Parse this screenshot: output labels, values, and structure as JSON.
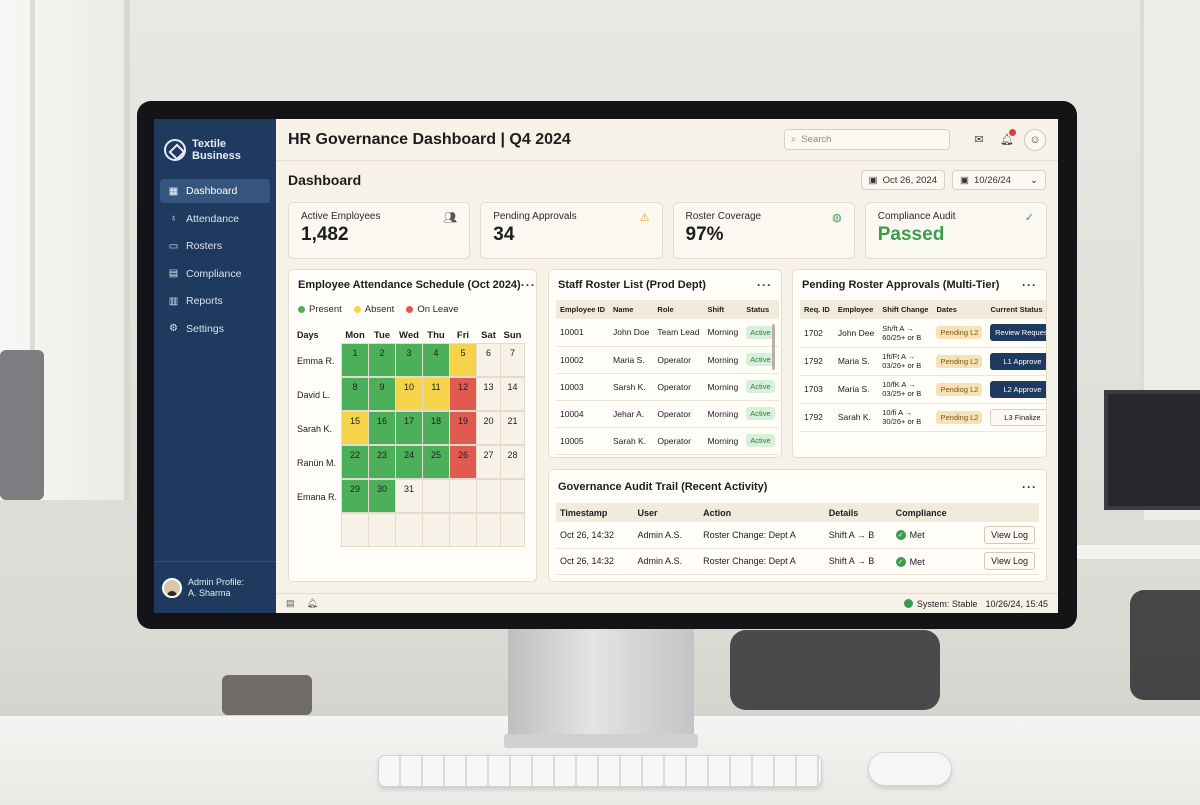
{
  "sidebar": {
    "brand": "Textile Business",
    "items": [
      {
        "label": "Dashboard",
        "icon": "grid-icon",
        "active": true
      },
      {
        "label": "Attendance",
        "icon": "microphone-icon"
      },
      {
        "label": "Rosters",
        "icon": "calendar-icon"
      },
      {
        "label": "Compliance",
        "icon": "document-icon"
      },
      {
        "label": "Reports",
        "icon": "bar-chart-icon"
      },
      {
        "label": "Settings",
        "icon": "gear-icon"
      }
    ],
    "profile": {
      "line1": "Admin Profile:",
      "line2": "A. Sharma"
    }
  },
  "header": {
    "title": "HR Governance Dashboard | Q4 2024",
    "search_placeholder": "Search"
  },
  "section": {
    "title": "Dashboard",
    "date_start": "Oct 26, 2024",
    "date_end": "10/26/24"
  },
  "kpis": [
    {
      "label": "Active Employees",
      "value": "1,482",
      "icon": "users-icon"
    },
    {
      "label": "Pending Approvals",
      "value": "34",
      "icon": "warning-icon"
    },
    {
      "label": "Roster Coverage",
      "value": "97%",
      "icon": "coverage-icon"
    },
    {
      "label": "Compliance Audit",
      "value": "Passed",
      "icon": "check-circle-icon"
    }
  ],
  "attendance": {
    "title": "Employee Attendance Schedule (Oct 2024)",
    "legend": [
      {
        "label": "Present",
        "color": "#4caf5a"
      },
      {
        "label": "Absent",
        "color": "#f5d34a"
      },
      {
        "label": "On Leave",
        "color": "#e05a4f"
      }
    ],
    "days_label": "Days",
    "days": [
      "Mon",
      "Tue",
      "Wed",
      "Thu",
      "Fri",
      "Sat",
      "Sun"
    ],
    "rows": [
      {
        "name": "Emma R.",
        "cells": [
          [
            "1",
            "present"
          ],
          [
            "2",
            "present"
          ],
          [
            "3",
            "present"
          ],
          [
            "4",
            "present"
          ],
          [
            "5",
            "absent"
          ],
          [
            "6",
            "none"
          ],
          [
            "7",
            "none"
          ]
        ]
      },
      {
        "name": "David L.",
        "cells": [
          [
            "8",
            "present"
          ],
          [
            "9",
            "present"
          ],
          [
            "10",
            "absent"
          ],
          [
            "11",
            "absent"
          ],
          [
            "12",
            "leave"
          ],
          [
            "13",
            "none"
          ],
          [
            "14",
            "none"
          ]
        ]
      },
      {
        "name": "Sarah K.",
        "cells": [
          [
            "15",
            "absent"
          ],
          [
            "16",
            "present"
          ],
          [
            "17",
            "present"
          ],
          [
            "18",
            "present"
          ],
          [
            "19",
            "leave"
          ],
          [
            "20",
            "none"
          ],
          [
            "21",
            "none"
          ]
        ]
      },
      {
        "name": "Ranün M.",
        "cells": [
          [
            "22",
            "present"
          ],
          [
            "23",
            "present"
          ],
          [
            "24",
            "present"
          ],
          [
            "25",
            "present"
          ],
          [
            "26",
            "leave"
          ],
          [
            "27",
            "none"
          ],
          [
            "28",
            "none"
          ]
        ]
      },
      {
        "name": "Emana R.",
        "cells": [
          [
            "29",
            "present"
          ],
          [
            "30",
            "present"
          ],
          [
            "31",
            "none"
          ],
          [
            "",
            "none"
          ],
          [
            "",
            "none"
          ],
          [
            "",
            "none"
          ],
          [
            "",
            "none"
          ]
        ]
      },
      {
        "name": "",
        "cells": [
          [
            "",
            "none"
          ],
          [
            "",
            "none"
          ],
          [
            "",
            "none"
          ],
          [
            "",
            "none"
          ],
          [
            "",
            "none"
          ],
          [
            "",
            "none"
          ],
          [
            "",
            "none"
          ]
        ]
      }
    ]
  },
  "roster": {
    "title": "Staff Roster List (Prod Dept)",
    "columns": [
      "Employee ID",
      "Name",
      "Role",
      "Shift",
      "Status"
    ],
    "rows": [
      [
        "10001",
        "John Doe",
        "Team Lead",
        "Morning",
        "Active"
      ],
      [
        "10002",
        "Maria S.",
        "Operator",
        "Morning",
        "Active"
      ],
      [
        "10003",
        "Sarsh K.",
        "Operator",
        "Morning",
        "Active"
      ],
      [
        "10004",
        "Jehar A.",
        "Operator",
        "Morning",
        "Active"
      ],
      [
        "10005",
        "Sarah K.",
        "Operator",
        "Morning",
        "Active"
      ]
    ]
  },
  "approvals": {
    "title": "Pending Roster Approvals (Multi-Tier)",
    "columns": [
      "Req. ID",
      "Employee",
      "Shift Change",
      "Dates",
      "Current Status"
    ],
    "rows": [
      {
        "id": "1702",
        "employee": "John Dee",
        "shift": "Sh/ft A →",
        "dates": "60/25+ or B",
        "status": "Pending L2",
        "action": "Review Request",
        "style": "dark"
      },
      {
        "id": "1792",
        "employee": "Maria S.",
        "shift": "1ft/Ft A →",
        "dates": "03/26+ or B",
        "status": "Pending L2",
        "action": "L1 Approve",
        "style": "dark"
      },
      {
        "id": "1703",
        "employee": "Maria S.",
        "shift": "10/fK A →",
        "dates": "03/25+ or B",
        "status": "Pendiog L2",
        "action": "L2 Approve",
        "style": "dark"
      },
      {
        "id": "1792",
        "employee": "Sarah K.",
        "shift": "10/fi A →",
        "dates": "30/26+ or B",
        "status": "Pending L2",
        "action": "L3 Finalize",
        "style": "light"
      }
    ]
  },
  "audit": {
    "title": "Governance Audit Trail (Recent Activity)",
    "columns": [
      "Timestamp",
      "User",
      "Action",
      "Details",
      "Compliance"
    ],
    "rows": [
      [
        "Oct 26, 14:32",
        "Admin A.S.",
        "Roster Change: Dept A",
        "Shift A → B",
        "Met",
        "View Log"
      ],
      [
        "Oct 26, 14:32",
        "Admin A.S.",
        "Roster Change: Dept A",
        "Shift A → B",
        "Met",
        "View Log"
      ]
    ]
  },
  "status": {
    "system": "System: Stable",
    "timestamp": "10/26/24, 15:45"
  },
  "colors": {
    "sidebar": "#1e3a5f",
    "accent_green": "#3c9b4d",
    "absent": "#f5d34a",
    "leave": "#e05a4f",
    "present": "#4caf5a"
  }
}
